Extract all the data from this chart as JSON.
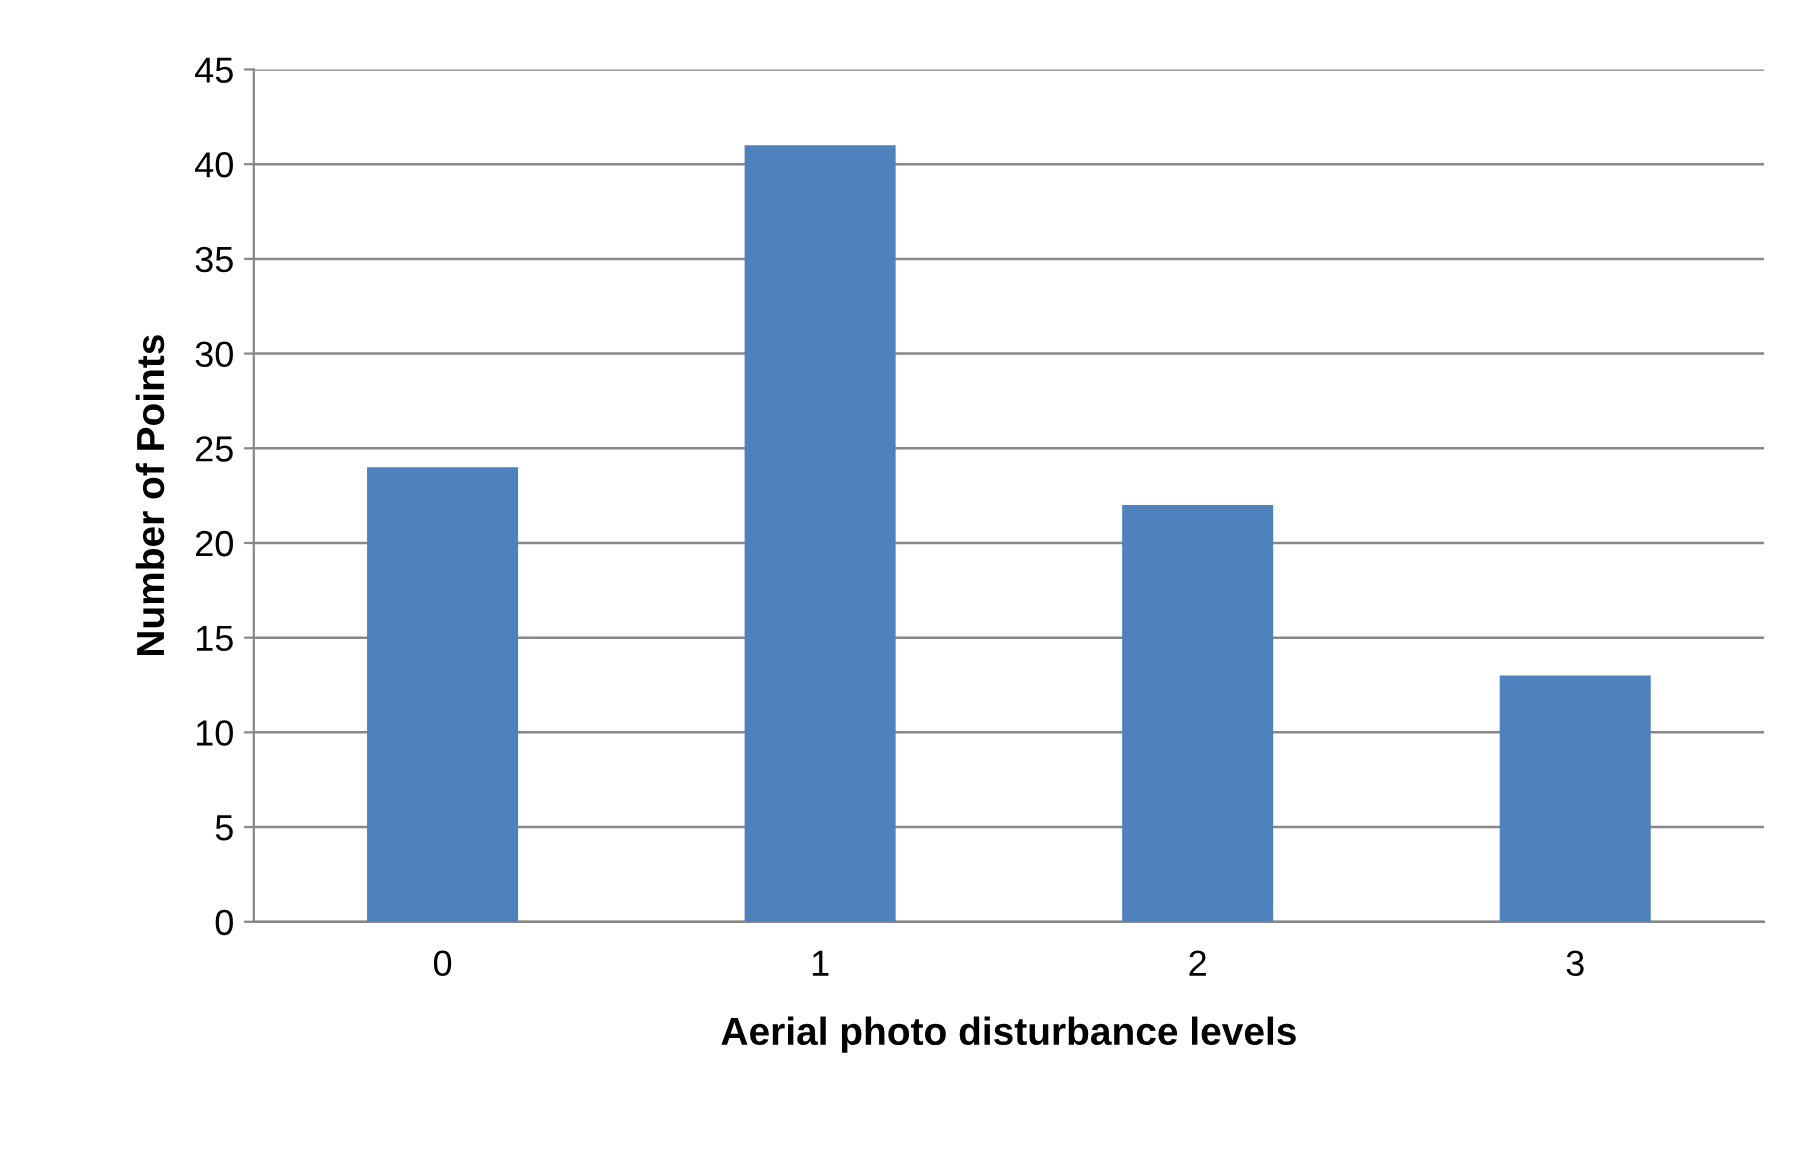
{
  "chart_data": {
    "type": "bar",
    "xlabel": "Aerial photo disturbance levels",
    "ylabel": "Number of Points",
    "categories": [
      "0",
      "1",
      "2",
      "3"
    ],
    "values": [
      24,
      41,
      22,
      13
    ],
    "color": "#4f81bd",
    "ylim": [
      0,
      45
    ],
    "yticks": [
      0,
      5,
      10,
      15,
      20,
      25,
      30,
      35,
      40,
      45
    ],
    "grid": "y",
    "legend": false
  }
}
